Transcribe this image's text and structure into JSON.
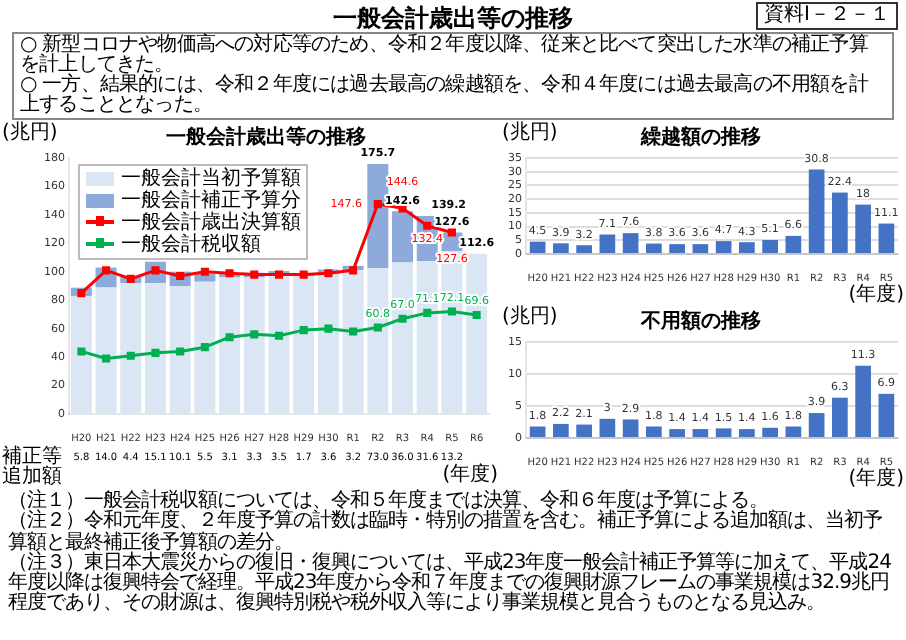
{
  "chart_data": [
    {
      "type": "other",
      "title": "一般会計歳出等の推移",
      "subtitle": "資料Ⅰ－２－１",
      "annotations": [
        "○ 新型コロナや物価高への対応等のため、令和２年度以降、従来と比べて突出した水準の補正予算を計上してきた。",
        "○ 一方、結果的には、令和２年度には過去最高の繰越額を、令和４年度には過去最高の不用額を計上することとなった。"
      ]
    },
    {
      "type": "bar",
      "title": "一般会計歳出等の推移",
      "ylabel": "(兆円)",
      "xlabel": "(年度)",
      "stacked": true,
      "legend": "top left",
      "marker": "square",
      "annotations": [
        "補正等追加額"
      ],
      "categories": [
        "H20",
        "H21",
        "H22",
        "H23",
        "H24",
        "H25",
        "H26",
        "H27",
        "H28",
        "H29",
        "H30",
        "R1",
        "R2",
        "R3",
        "R4",
        "R5",
        "R6"
      ],
      "ylim": [
        0,
        180
      ],
      "yticks": [
        0,
        20,
        40,
        60,
        80,
        100,
        120,
        140,
        160,
        180
      ],
      "series": [
        {
          "name": "一般会計当初予算額",
          "color": "#dae6f4",
          "values": [
            83,
            89,
            92,
            92,
            90,
            93,
            96,
            96,
            97,
            97,
            98,
            101,
            102.7,
            106.6,
            107.6,
            114.4,
            112.6
          ]
        },
        {
          "name": "一般会計補正予算分",
          "color": "#8eaadb",
          "values": [
            5.8,
            14.0,
            4.4,
            15.1,
            10.1,
            5.5,
            3.1,
            3.3,
            3.5,
            1.7,
            3.6,
            3.2,
            73.0,
            36.0,
            31.6,
            13.2,
            null
          ],
          "value_labels": [
            "5.8",
            "14.0",
            "4.4",
            "15.1",
            "10.1",
            "5.5",
            "3.1",
            "3.3",
            "3.5",
            "1.7",
            "3.6",
            "3.2",
            "73.0",
            "36.0",
            "31.6",
            "13.2",
            null
          ]
        },
        {
          "name": "一般会計歳出決算額",
          "type": "line",
          "color": "#ff0000",
          "values": [
            85,
            101,
            95,
            101,
            97,
            100,
            99,
            98,
            98,
            98,
            99,
            101,
            147.6,
            144.6,
            132.4,
            127.6,
            null
          ],
          "value_labels": [
            null,
            null,
            null,
            null,
            null,
            null,
            null,
            null,
            null,
            null,
            null,
            null,
            "147.6",
            "144.6",
            "132.4",
            "127.6",
            null
          ]
        },
        {
          "name": "一般会計税収額",
          "type": "line",
          "color": "#00b050",
          "values": [
            44,
            39,
            41,
            43,
            44,
            47,
            54,
            56,
            55,
            59,
            60,
            58,
            60.8,
            67.0,
            71.1,
            72.1,
            69.6
          ],
          "value_labels": [
            null,
            null,
            null,
            null,
            null,
            null,
            null,
            null,
            null,
            null,
            null,
            null,
            "60.8",
            "67.0",
            "71.1",
            "72.1",
            "69.6"
          ]
        }
      ],
      "totals": [
        null,
        null,
        null,
        null,
        null,
        null,
        null,
        null,
        null,
        null,
        null,
        null,
        "175.7",
        "142.6",
        "139.2",
        "127.6",
        "112.6"
      ]
    },
    {
      "type": "bar",
      "title": "繰越額の推移",
      "ylabel": "(兆円)",
      "xlabel": "(年度)",
      "grid": "y",
      "data_labels": true,
      "categories": [
        "H20",
        "H21",
        "H22",
        "H23",
        "H24",
        "H25",
        "H26",
        "H27",
        "H28",
        "H29",
        "H30",
        "R1",
        "R2",
        "R3",
        "R4",
        "R5"
      ],
      "ylim": [
        0,
        35
      ],
      "yticks": [
        0,
        5,
        10,
        15,
        20,
        25,
        30,
        35
      ],
      "color": "#4472c4",
      "values": [
        4.5,
        3.9,
        3.2,
        7.1,
        7.6,
        3.8,
        3.6,
        3.6,
        4.7,
        4.3,
        5.1,
        6.6,
        30.8,
        22.4,
        18.0,
        11.1
      ]
    },
    {
      "type": "bar",
      "title": "不用額の推移",
      "ylabel": "(兆円)",
      "xlabel": "(年度)",
      "grid": "y",
      "data_labels": true,
      "categories": [
        "H20",
        "H21",
        "H22",
        "H23",
        "H24",
        "H25",
        "H26",
        "H27",
        "H28",
        "H29",
        "H30",
        "R1",
        "R2",
        "R3",
        "R4",
        "R5"
      ],
      "ylim": [
        0,
        15
      ],
      "yticks": [
        0,
        5,
        10,
        15
      ],
      "color": "#4472c4",
      "values": [
        1.8,
        2.2,
        2.1,
        3.0,
        2.9,
        1.8,
        1.4,
        1.4,
        1.5,
        1.4,
        1.6,
        1.8,
        3.9,
        6.3,
        11.3,
        6.9
      ]
    },
    {
      "type": "other",
      "annotations": [
        "（注１）一般会計税収額については、令和５年度までは決算、令和６年度は予算による。",
        "（注２）令和元年度、２年度予算の計数は臨時・特別の措置を含む。補正予算による追加額は、当初予算額と最終補正後予算額の差分。",
        "（注３）東日本大震災からの復旧・復興については、平成23年度一般会計補正予算等に加えて、平成24年度以降は復興特会で経理。平成23年度から令和７年度までの復興財源フレームの事業規模は32.9兆円程度であり、その財源は、復興特別税や税外収入等により事業規模と見合うものとなる見込み。"
      ]
    }
  ]
}
